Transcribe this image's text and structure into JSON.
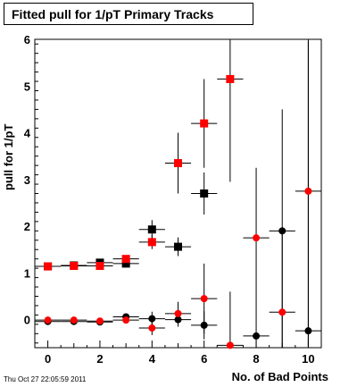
{
  "header": {
    "title": "Fitted pull for 1/pT Primary Tracks"
  },
  "footer": {
    "timestamp": "Thu Oct 27 22:05:59 2011"
  },
  "chart_data": {
    "type": "scatter",
    "title": "Fitted pull for 1/pT Primary Tracks",
    "xlabel": "No. of Bad Points",
    "ylabel": "pull for 1/pT",
    "xlim": [
      -0.5,
      10.5
    ],
    "ylim": [
      -0.6,
      6.0
    ],
    "xticks": [
      0,
      2,
      4,
      6,
      8,
      10
    ],
    "yticks": [
      0,
      1,
      2,
      3,
      4,
      5,
      6
    ],
    "grid": false,
    "series": [
      {
        "marker": "square",
        "color": "#000000",
        "points": [
          {
            "x": 0,
            "y": 1.14,
            "err": 0.03
          },
          {
            "x": 1,
            "y": 1.16,
            "err": 0.03
          },
          {
            "x": 2,
            "y": 1.22,
            "err": 0.04
          },
          {
            "x": 3,
            "y": 1.2,
            "err": 0.06
          },
          {
            "x": 4,
            "y": 1.93,
            "err": 0.2
          },
          {
            "x": 5,
            "y": 1.56,
            "err": 0.2
          },
          {
            "x": 6,
            "y": 2.7,
            "err": 0.45
          }
        ]
      },
      {
        "marker": "square",
        "color": "#ff0000",
        "points": [
          {
            "x": 0,
            "y": 1.14,
            "err": 0.03
          },
          {
            "x": 1,
            "y": 1.15,
            "err": 0.03
          },
          {
            "x": 2,
            "y": 1.15,
            "err": 0.05
          },
          {
            "x": 3,
            "y": 1.3,
            "err": 0.07
          },
          {
            "x": 4,
            "y": 1.66,
            "err": 0.15
          },
          {
            "x": 5,
            "y": 3.35,
            "err": 0.65
          },
          {
            "x": 6,
            "y": 4.2,
            "err": 0.95
          },
          {
            "x": 7,
            "y": 5.15,
            "err": 2.2
          }
        ]
      },
      {
        "marker": "circle",
        "color": "#000000",
        "points": [
          {
            "x": 0,
            "y": -0.04,
            "err": 0.03
          },
          {
            "x": 1,
            "y": -0.04,
            "err": 0.03
          },
          {
            "x": 2,
            "y": -0.05,
            "err": 0.04
          },
          {
            "x": 3,
            "y": 0.06,
            "err": 0.06
          },
          {
            "x": 4,
            "y": 0.02,
            "err": 0.15
          },
          {
            "x": 5,
            "y": 0.0,
            "err": 0.15
          },
          {
            "x": 6,
            "y": -0.12,
            "err": 0.3
          },
          {
            "x": 8,
            "y": -0.35,
            "err": 0.6
          },
          {
            "x": 9,
            "y": 1.9,
            "err": 2.6
          },
          {
            "x": 10,
            "y": -0.24,
            "err": 6.2
          }
        ]
      },
      {
        "marker": "circle",
        "color": "#ff0000",
        "points": [
          {
            "x": 0,
            "y": -0.01,
            "err": 0.03
          },
          {
            "x": 1,
            "y": -0.01,
            "err": 0.03
          },
          {
            "x": 2,
            "y": -0.03,
            "err": 0.04
          },
          {
            "x": 3,
            "y": -0.01,
            "err": 0.06
          },
          {
            "x": 4,
            "y": -0.18,
            "err": 0.15
          },
          {
            "x": 5,
            "y": 0.13,
            "err": 0.25
          },
          {
            "x": 6,
            "y": 0.45,
            "err": 0.75
          },
          {
            "x": 7,
            "y": -0.55,
            "err": 1.15
          },
          {
            "x": 8,
            "y": 1.75,
            "err": 1.5
          },
          {
            "x": 9,
            "y": 0.16,
            "err": 1.7
          },
          {
            "x": 10,
            "y": 2.75,
            "err": 3.3
          }
        ]
      }
    ]
  }
}
